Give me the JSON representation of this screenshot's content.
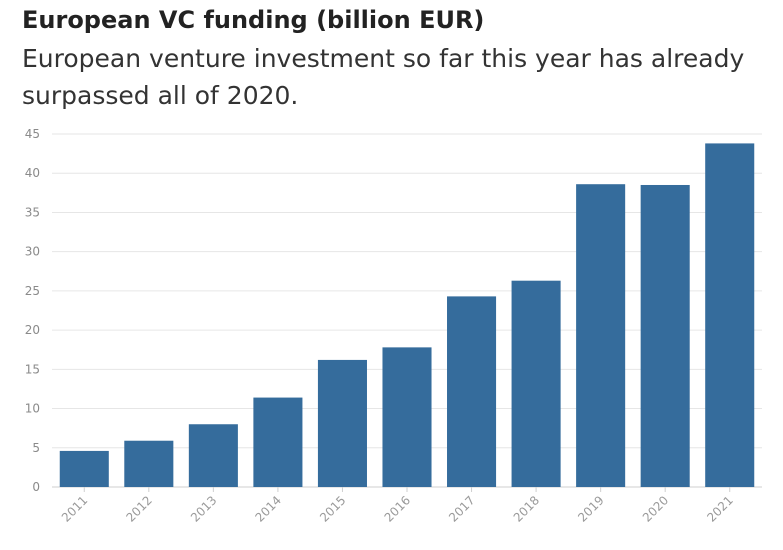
{
  "chart_data": {
    "type": "bar",
    "title": "European VC funding (billion EUR)",
    "subtitle": "European venture investment so far this year has already surpassed all of 2020.",
    "xlabel": "",
    "ylabel": "",
    "categories": [
      "2011",
      "2012",
      "2013",
      "2014",
      "2015",
      "2016",
      "2017",
      "2018",
      "2019",
      "2020",
      "2021"
    ],
    "values": [
      4.6,
      5.9,
      8.0,
      11.4,
      16.2,
      17.8,
      24.3,
      26.3,
      38.6,
      38.5,
      43.8
    ],
    "ylim": [
      0,
      45
    ],
    "yticks": [
      0,
      5,
      10,
      15,
      20,
      25,
      30,
      35,
      40,
      45
    ],
    "grid": true,
    "colors": {
      "bar": "#356c9c",
      "grid": "#e6e6e6"
    }
  }
}
